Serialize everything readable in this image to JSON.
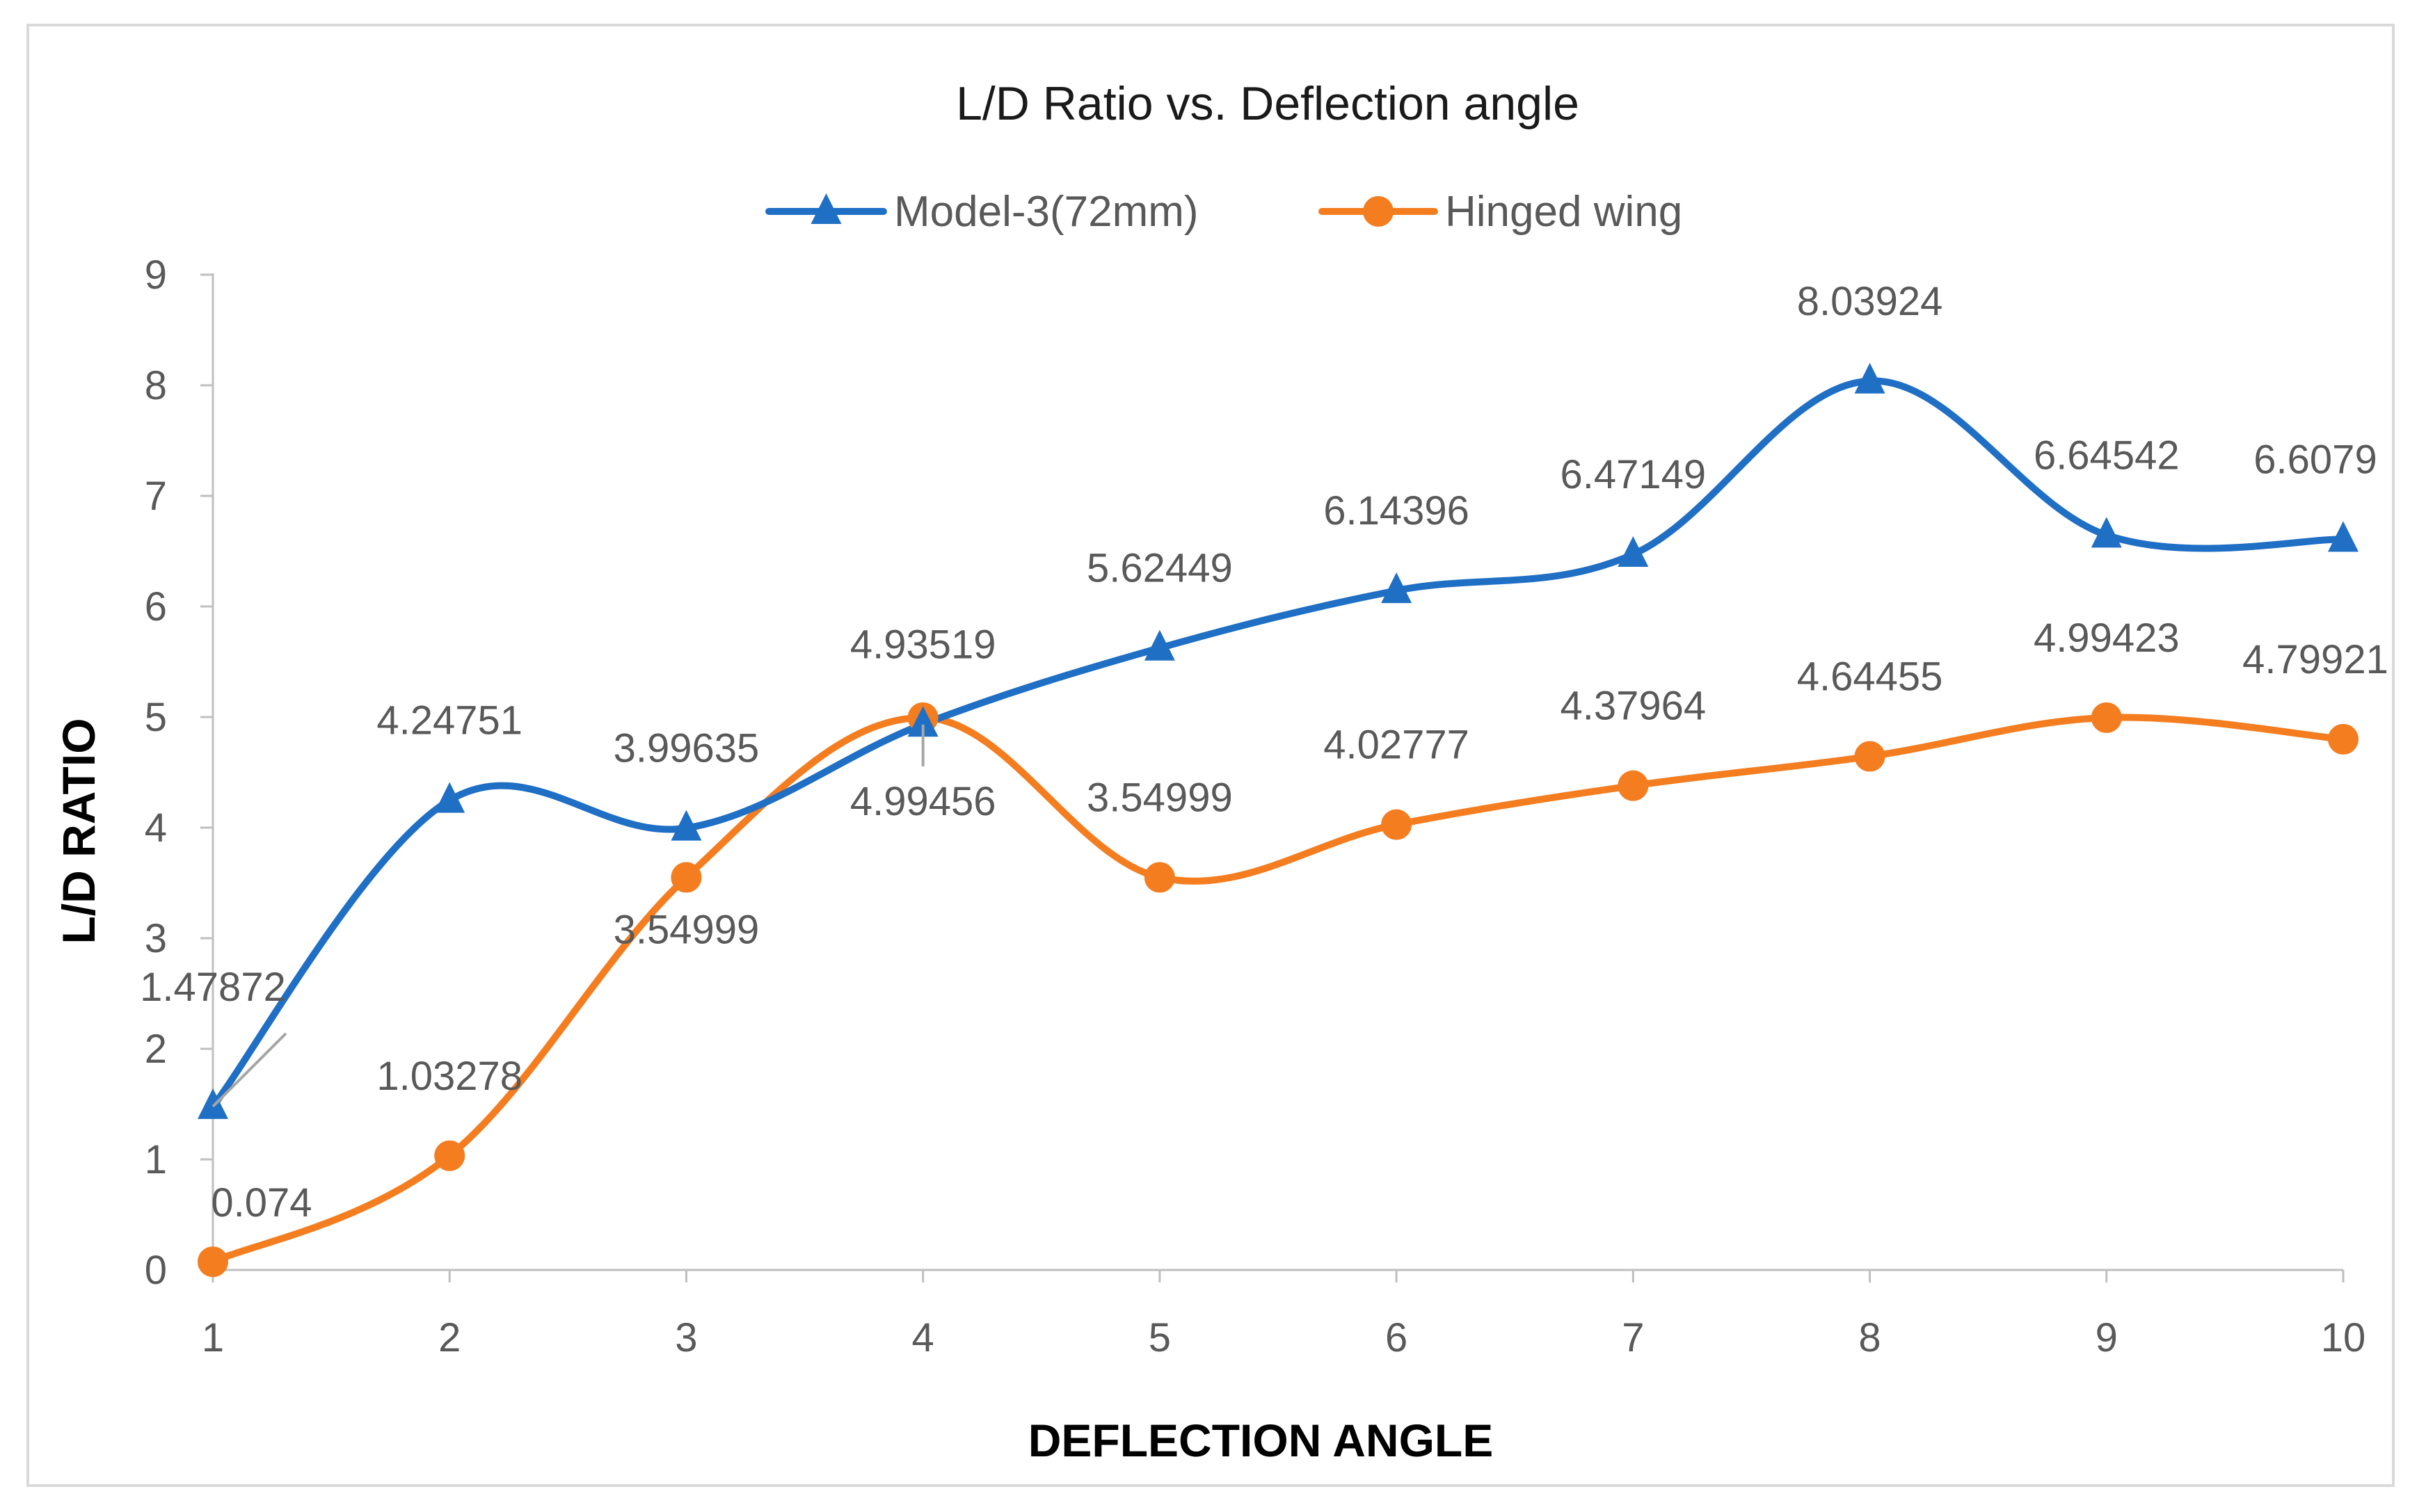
{
  "chart_data": {
    "type": "line",
    "title": "L/D Ratio vs. Deflection angle",
    "xlabel": "DEFLECTION ANGLE",
    "ylabel": "L/D RATIO",
    "x": [
      1,
      2,
      3,
      4,
      5,
      6,
      7,
      8,
      9,
      10
    ],
    "xlim": [
      1,
      10
    ],
    "ylim": [
      0,
      9
    ],
    "yticks": [
      "0",
      "1",
      "2",
      "3",
      "4",
      "5",
      "6",
      "7",
      "8",
      "9"
    ],
    "xticks": [
      "1",
      "2",
      "3",
      "4",
      "5",
      "6",
      "7",
      "8",
      "9",
      "10"
    ],
    "grid": false,
    "legend_position": "top",
    "smooth": true,
    "series": [
      {
        "name": "Model-3(72mm)",
        "color": "#1f6fc5",
        "marker": "triangle",
        "values": [
          1.47872,
          4.24751,
          3.99635,
          4.93519,
          5.62449,
          6.14396,
          6.47149,
          8.03924,
          6.64542,
          6.6079
        ],
        "labels": [
          "1.47872",
          "4.24751",
          "3.99635",
          "4.93519",
          "5.62449",
          "6.14396",
          "6.47149",
          "8.03924",
          "6.64542",
          "6.6079"
        ]
      },
      {
        "name": "Hinged wing",
        "color": "#f47d20",
        "marker": "circle",
        "values": [
          0.074,
          1.03278,
          3.54999,
          4.99456,
          3.54999,
          4.02777,
          4.37964,
          4.64455,
          4.99423,
          4.79921
        ],
        "labels": [
          "0.074",
          "1.03278",
          "3.54999",
          "4.99456",
          "3.54999",
          "4.02777",
          "4.37964",
          "4.64455",
          "4.99423",
          "4.79921"
        ]
      }
    ]
  }
}
